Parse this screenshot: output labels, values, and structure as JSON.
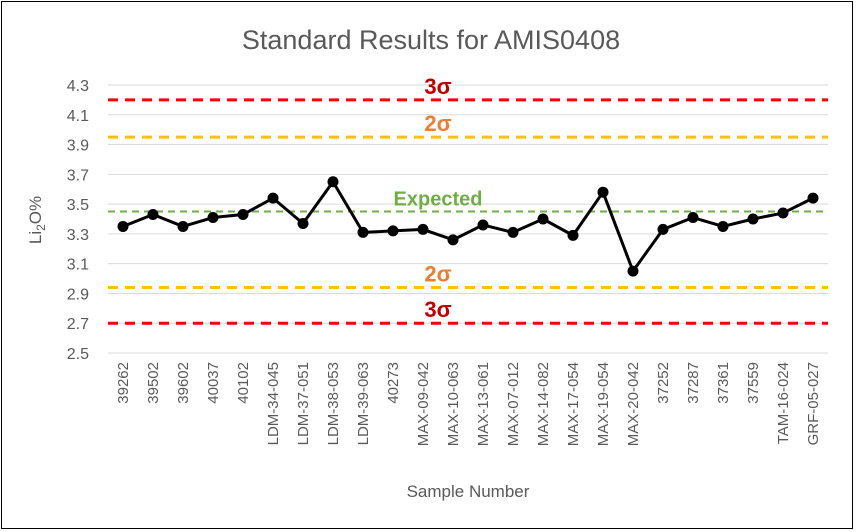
{
  "chart_data": {
    "type": "line",
    "title": "Standard Results for AMIS0408",
    "xlabel": "Sample Number",
    "ylabel_main": "Li",
    "ylabel_sub": "2",
    "ylabel_tail": "O%",
    "ylim": [
      2.5,
      4.3
    ],
    "yticks": [
      "4.3",
      "4.1",
      "3.9",
      "3.7",
      "3.5",
      "3.3",
      "3.1",
      "2.9",
      "2.7",
      "2.5"
    ],
    "grid": true,
    "categories": [
      "39262",
      "39502",
      "39602",
      "40037",
      "40102",
      "LDM-34-045",
      "LDM-37-051",
      "LDM-38-053",
      "LDM-39-063",
      "40273",
      "MAX-09-042",
      "MAX-10-063",
      "MAX-13-061",
      "MAX-07-012",
      "MAX-14-082",
      "MAX-17-054",
      "MAX-19-054",
      "MAX-20-042",
      "37252",
      "37287",
      "37361",
      "37559",
      "TAM-16-024",
      "GRF-05-027"
    ],
    "series": [
      {
        "values": [
          3.35,
          3.43,
          3.35,
          3.41,
          3.43,
          3.54,
          3.37,
          3.65,
          3.31,
          3.32,
          3.33,
          3.26,
          3.36,
          3.31,
          3.4,
          3.29,
          3.58,
          3.05,
          3.33,
          3.41,
          3.35,
          3.4,
          3.44,
          3.54
        ],
        "color": "#000000"
      }
    ],
    "reference_lines": [
      {
        "label": "3σ",
        "value": 4.2,
        "color": "#ff0000",
        "label_color": "#c00000"
      },
      {
        "label": "2σ",
        "value": 3.95,
        "color": "#ffc000",
        "label_color": "#ed7d31"
      },
      {
        "label": "Expected",
        "value": 3.45,
        "color": "#70ad47",
        "label_color": "#70ad47"
      },
      {
        "label": "2σ",
        "value": 2.94,
        "color": "#ffc000",
        "label_color": "#ed7d31"
      },
      {
        "label": "3σ",
        "value": 2.7,
        "color": "#ff0000",
        "label_color": "#c00000"
      }
    ]
  }
}
